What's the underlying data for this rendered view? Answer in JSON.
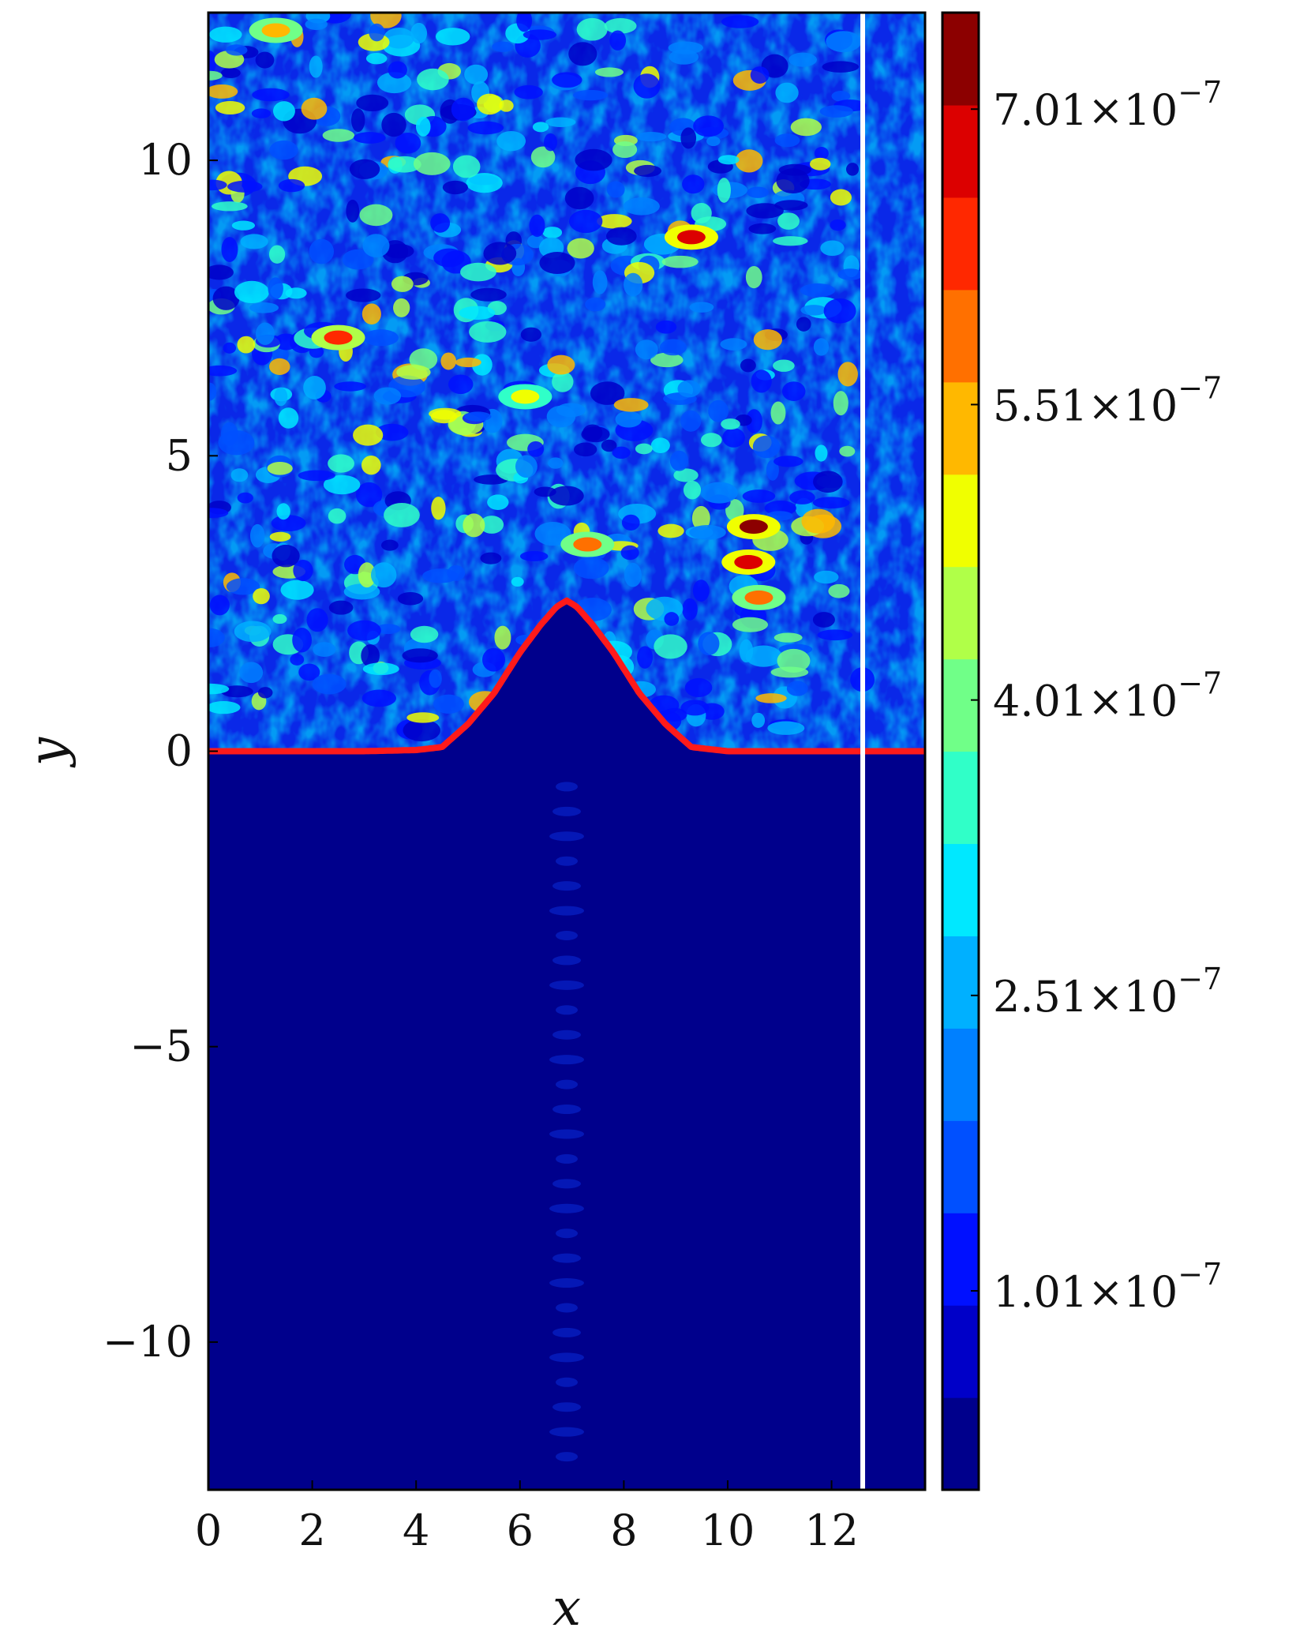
{
  "chart_data": {
    "type": "heatmap",
    "title": "",
    "xlabel": "x",
    "ylabel": "y",
    "xlim": [
      0,
      13.8
    ],
    "ylim": [
      -12.5,
      12.5
    ],
    "x_ticks": [
      0,
      2,
      4,
      6,
      8,
      10,
      12
    ],
    "x_tick_labels": [
      "0",
      "2",
      "4",
      "6",
      "8",
      "10",
      "12"
    ],
    "y_ticks": [
      -10,
      -5,
      0,
      5,
      10
    ],
    "y_tick_labels": [
      "−10",
      "−5",
      "0",
      "5",
      "10"
    ],
    "grid": false,
    "colormap": "jet",
    "colorbar": {
      "min": 0,
      "max": 7.5e-07,
      "levels": 16,
      "tick_values": [
        1.01e-07,
        2.51e-07,
        4.01e-07,
        5.51e-07,
        7.01e-07
      ],
      "tick_labels": [
        {
          "mantissa": "1.01",
          "base": "×10",
          "exponent": "−7"
        },
        {
          "mantissa": "2.51",
          "base": "×10",
          "exponent": "−7"
        },
        {
          "mantissa": "4.01",
          "base": "×10",
          "exponent": "−7"
        },
        {
          "mantissa": "5.51",
          "base": "×10",
          "exponent": "−7"
        },
        {
          "mantissa": "7.01",
          "base": "×10",
          "exponent": "−7"
        }
      ],
      "colors": [
        "#00008c",
        "#0000c8",
        "#0010ff",
        "#0050ff",
        "#0080ff",
        "#00b0ff",
        "#00e8ff",
        "#30ffc8",
        "#70ff88",
        "#b0ff48",
        "#f0ff00",
        "#ffb800",
        "#ff7000",
        "#ff2800",
        "#dc0000",
        "#8c0000"
      ]
    },
    "interface_curve": {
      "color": "#ff1a1a",
      "description": "bump y = 2.55·exp(-((x-6.9)/0.95)^2)",
      "x": [
        0,
        3,
        4,
        4.5,
        5,
        5.5,
        6,
        6.4,
        6.7,
        6.9,
        7.1,
        7.4,
        7.8,
        8.3,
        8.8,
        9.3,
        10,
        13.8
      ],
      "y": [
        0,
        0,
        0.02,
        0.07,
        0.46,
        0.98,
        1.67,
        2.14,
        2.44,
        2.55,
        2.44,
        2.14,
        1.67,
        0.98,
        0.46,
        0.07,
        0,
        0
      ]
    },
    "vertical_line": {
      "x": 12.6,
      "color": "#ffffff"
    },
    "hotspots": [
      {
        "x": 10.5,
        "y": 3.8,
        "value": 7.2e-07
      },
      {
        "x": 10.4,
        "y": 3.2,
        "value": 6.8e-07
      },
      {
        "x": 9.3,
        "y": 8.7,
        "value": 7e-07
      },
      {
        "x": 2.5,
        "y": 7.0,
        "value": 6.5e-07
      },
      {
        "x": 7.3,
        "y": 3.5,
        "value": 6e-07
      },
      {
        "x": 1.3,
        "y": 12.2,
        "value": 5.5e-07
      },
      {
        "x": 10.6,
        "y": 2.6,
        "value": 5.8e-07
      },
      {
        "x": 6.1,
        "y": 6.0,
        "value": 5e-07
      }
    ]
  }
}
